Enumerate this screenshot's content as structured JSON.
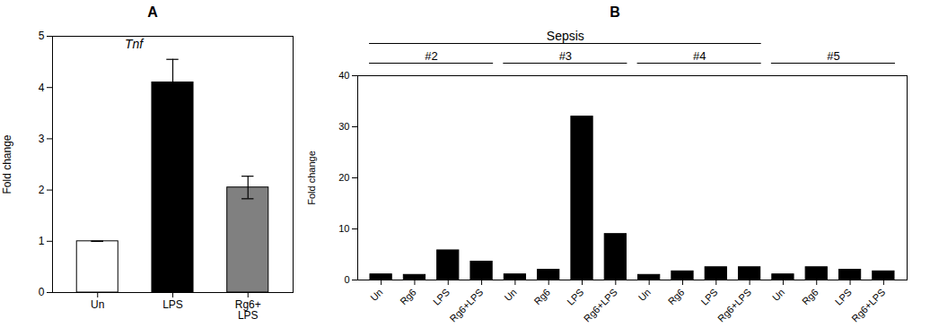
{
  "chart_data": [
    {
      "type": "bar",
      "title": "A",
      "annotation": "Tnf",
      "categories": [
        "Un",
        "LPS",
        "Rg6+\nLPS"
      ],
      "values": [
        1.0,
        4.1,
        2.05
      ],
      "errors": [
        0.0,
        0.45,
        0.22
      ],
      "colors": [
        "white",
        "black",
        "#808080"
      ],
      "ylabel": "Fold change",
      "ylim": [
        0,
        5
      ],
      "yticks": [
        0,
        1,
        2,
        3,
        4,
        5
      ],
      "grid": false
    },
    {
      "type": "bar",
      "title": "B",
      "ylabel": "Fold change",
      "ylim": [
        0,
        40
      ],
      "yticks": [
        0,
        10,
        20,
        30,
        40
      ],
      "grid": false,
      "color": "black",
      "groups": [
        {
          "label": "#2",
          "categories": [
            "Un",
            "Rg6",
            "LPS",
            "Rg6+LPS"
          ],
          "values": [
            1.1,
            1.0,
            5.8,
            3.6
          ]
        },
        {
          "label": "#3",
          "categories": [
            "Un",
            "Rg6",
            "LPS",
            "Rg6+LPS"
          ],
          "values": [
            1.1,
            2.0,
            32.0,
            9.0
          ]
        },
        {
          "label": "#4",
          "categories": [
            "Un",
            "Rg6",
            "LPS",
            "Rg6+LPS"
          ],
          "values": [
            1.0,
            1.7,
            2.5,
            2.5
          ]
        },
        {
          "label": "#5",
          "categories": [
            "Un",
            "Rg6",
            "LPS",
            "Rg6+LPS"
          ],
          "values": [
            1.1,
            2.5,
            2.0,
            1.7
          ]
        }
      ],
      "brackets": [
        {
          "label": "Sepsis",
          "groups": [
            "#2",
            "#3",
            "#4"
          ]
        }
      ]
    }
  ]
}
